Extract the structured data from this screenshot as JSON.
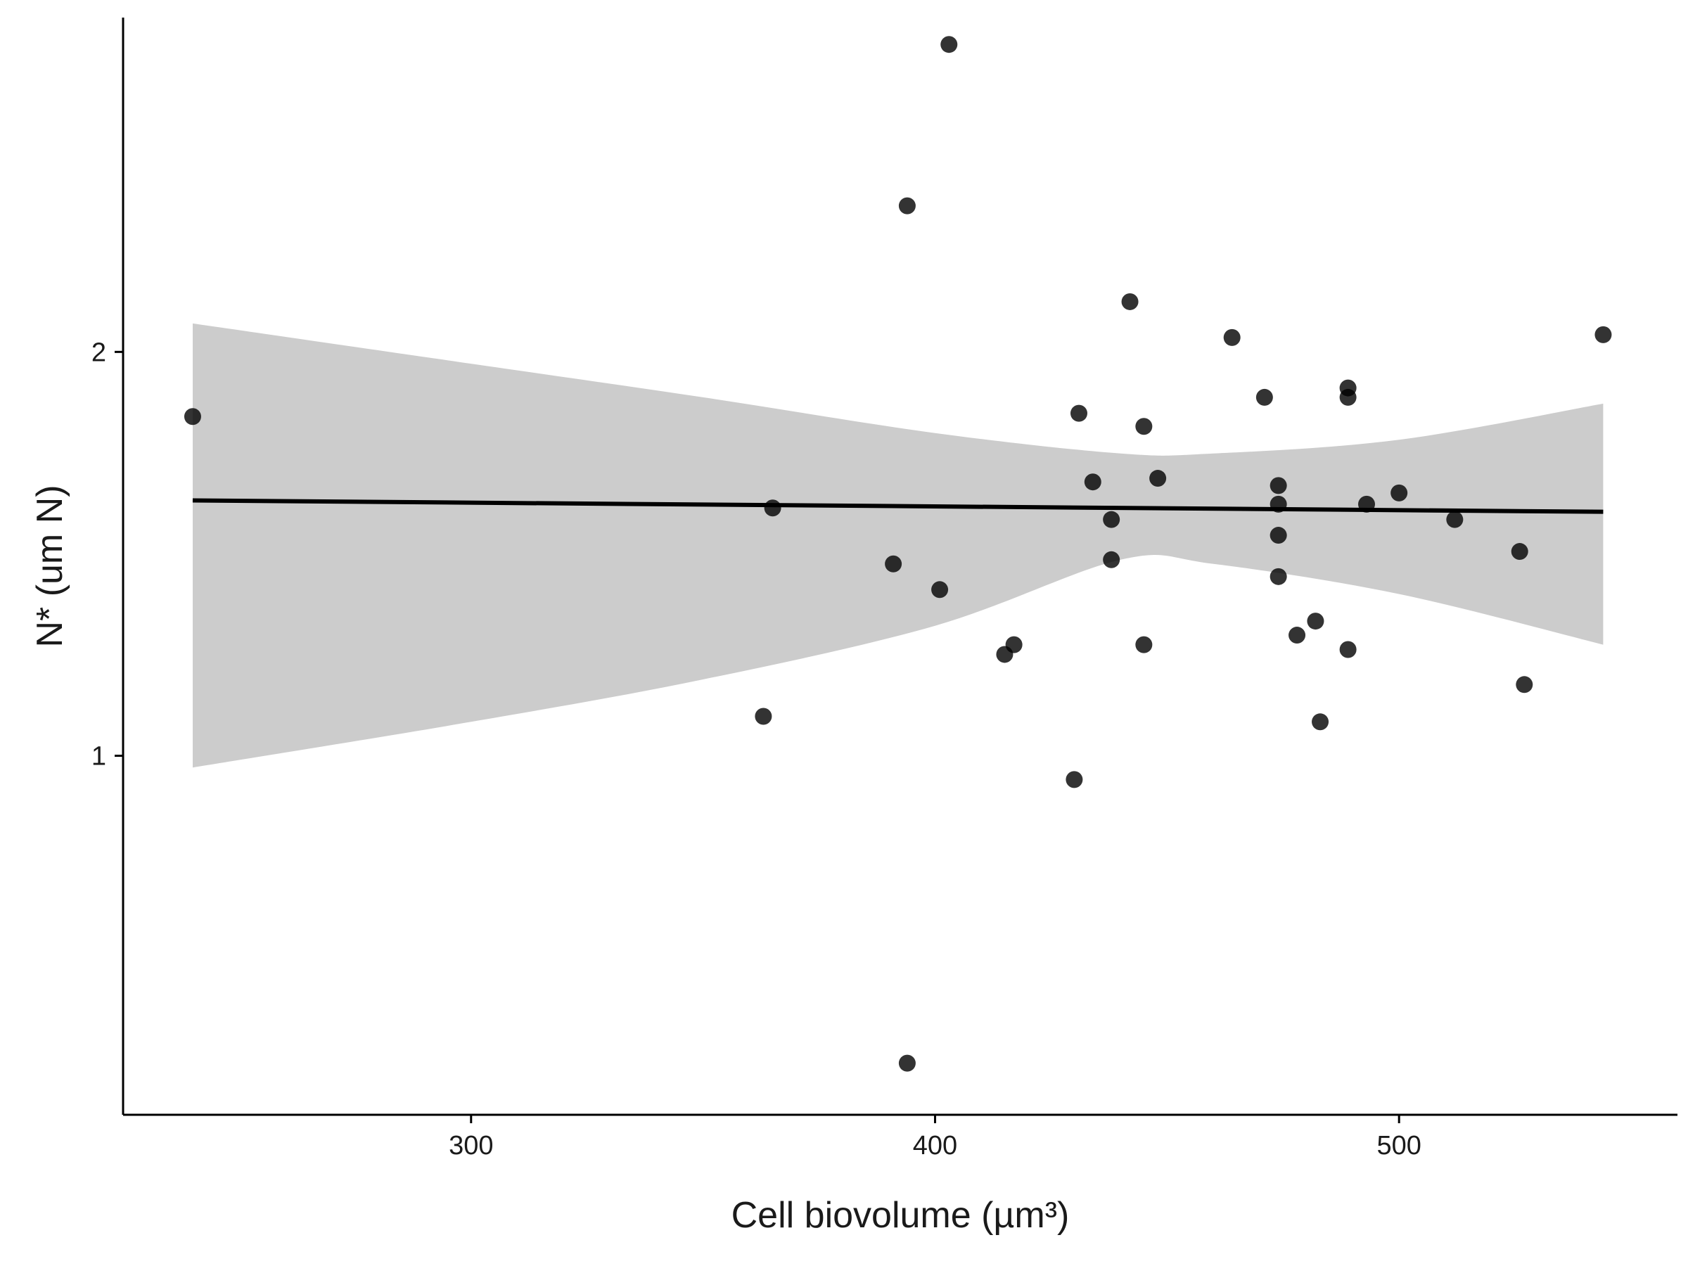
{
  "chart_data": {
    "type": "scatter",
    "title": "",
    "xlabel": "Cell biovolume (µm³)",
    "ylabel": "N* (um N)",
    "y_scale": "log",
    "xlim": [
      225,
      560
    ],
    "ylim": [
      0.54,
      3.55
    ],
    "x_ticks": [
      300,
      400,
      500
    ],
    "y_ticks": [
      1,
      2
    ],
    "grid": false,
    "legend": "none",
    "points": [
      {
        "x": 240,
        "y": 1.79
      },
      {
        "x": 363,
        "y": 1.07
      },
      {
        "x": 365,
        "y": 1.53
      },
      {
        "x": 391,
        "y": 1.39
      },
      {
        "x": 394,
        "y": 2.57
      },
      {
        "x": 394,
        "y": 0.59
      },
      {
        "x": 401,
        "y": 1.33
      },
      {
        "x": 403,
        "y": 3.39
      },
      {
        "x": 415,
        "y": 1.19
      },
      {
        "x": 417,
        "y": 1.21
      },
      {
        "x": 430,
        "y": 0.96
      },
      {
        "x": 431,
        "y": 1.8
      },
      {
        "x": 434,
        "y": 1.6
      },
      {
        "x": 438,
        "y": 1.5
      },
      {
        "x": 438,
        "y": 1.4
      },
      {
        "x": 442,
        "y": 2.18
      },
      {
        "x": 445,
        "y": 1.76
      },
      {
        "x": 445,
        "y": 1.21
      },
      {
        "x": 448,
        "y": 1.61
      },
      {
        "x": 464,
        "y": 2.05
      },
      {
        "x": 471,
        "y": 1.85
      },
      {
        "x": 474,
        "y": 1.59
      },
      {
        "x": 474,
        "y": 1.54
      },
      {
        "x": 474,
        "y": 1.46
      },
      {
        "x": 474,
        "y": 1.36
      },
      {
        "x": 478,
        "y": 1.23
      },
      {
        "x": 482,
        "y": 1.26
      },
      {
        "x": 483,
        "y": 1.06
      },
      {
        "x": 489,
        "y": 1.88
      },
      {
        "x": 489,
        "y": 1.85
      },
      {
        "x": 489,
        "y": 1.2
      },
      {
        "x": 493,
        "y": 1.54
      },
      {
        "x": 500,
        "y": 1.57
      },
      {
        "x": 512,
        "y": 1.5
      },
      {
        "x": 526,
        "y": 1.42
      },
      {
        "x": 527,
        "y": 1.13
      },
      {
        "x": 544,
        "y": 2.06
      }
    ],
    "fit_line": {
      "x": [
        240,
        544
      ],
      "y": [
        1.55,
        1.52
      ]
    },
    "confidence_band": {
      "x": [
        240,
        300,
        350,
        400,
        440,
        460,
        500,
        544
      ],
      "upper": [
        2.1,
        1.96,
        1.85,
        1.74,
        1.68,
        1.68,
        1.72,
        1.83
      ],
      "lower": [
        0.98,
        1.06,
        1.14,
        1.25,
        1.4,
        1.39,
        1.32,
        1.21
      ]
    },
    "colors": {
      "points": "#000000",
      "line": "#000000",
      "band": "#cccccc",
      "axis": "#000000"
    }
  }
}
